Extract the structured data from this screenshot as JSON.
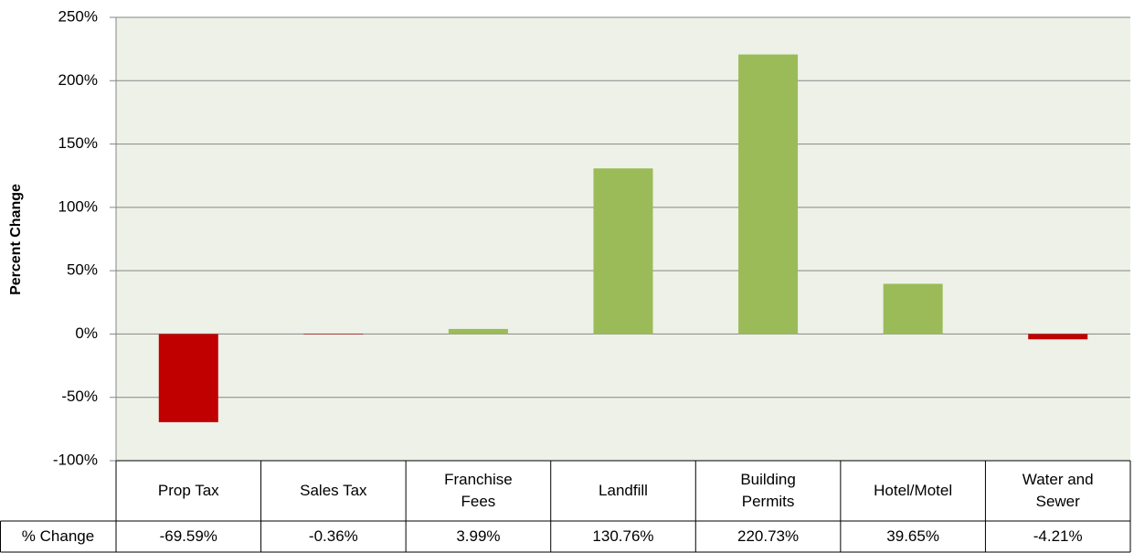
{
  "chart_data": {
    "type": "bar",
    "y_label": "Percent Change",
    "categories": [
      "Prop Tax",
      "Sales Tax",
      "Franchise Fees",
      "Landfill",
      "Building Permits",
      "Hotel/Motel",
      "Water and Sewer"
    ],
    "values": [
      -69.59,
      -0.36,
      3.99,
      130.76,
      220.73,
      39.65,
      -4.21
    ],
    "value_labels": [
      "-69.59%",
      "-0.36%",
      "3.99%",
      "130.76%",
      "220.73%",
      "39.65%",
      "-4.21%"
    ],
    "colors": [
      "#c00000",
      "#c00000",
      "#9bbb59",
      "#9bbb59",
      "#9bbb59",
      "#9bbb59",
      "#c00000"
    ],
    "table_row_label": "% Change",
    "ylim": [
      -100,
      250
    ],
    "yticks": [
      {
        "value": -100,
        "label": "-100%"
      },
      {
        "value": -50,
        "label": "-50%"
      },
      {
        "value": 0,
        "label": "0%"
      },
      {
        "value": 50,
        "label": "50%"
      },
      {
        "value": 100,
        "label": "100%"
      },
      {
        "value": 150,
        "label": "150%"
      },
      {
        "value": 200,
        "label": "200%"
      },
      {
        "value": 250,
        "label": "250%"
      }
    ],
    "grid": true
  }
}
